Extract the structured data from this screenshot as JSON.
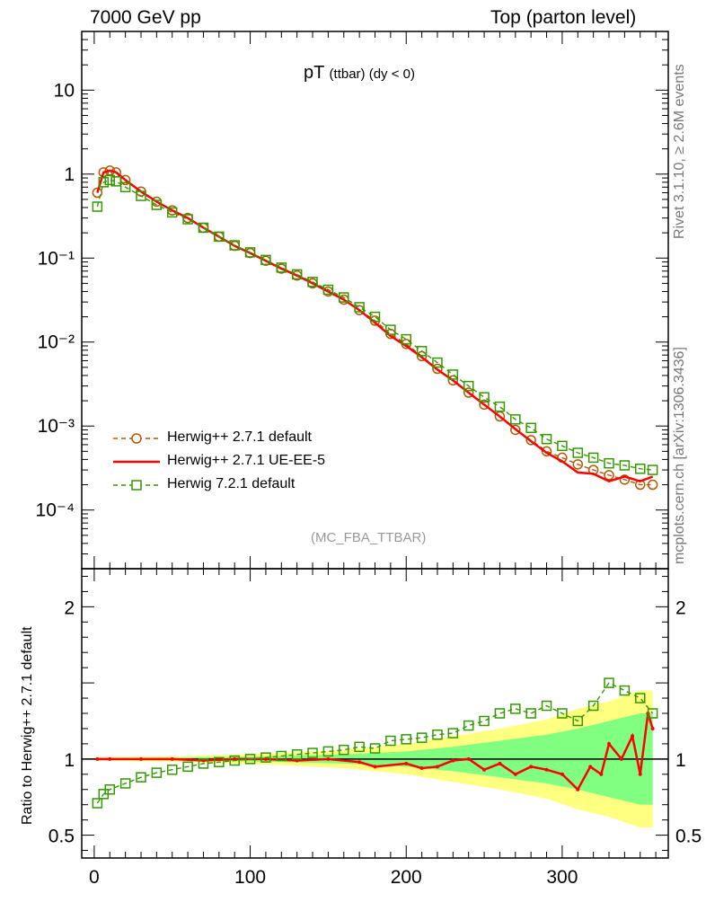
{
  "header": {
    "left": "7000 GeV pp",
    "right": "Top (parton level)"
  },
  "side_text": {
    "rivet": "Rivet 3.1.10, ≥ 2.6M events",
    "site": "mcplots.cern.ch [arXiv:1306.3436]"
  },
  "analysis_tag": "(MC_FBA_TTBAR)",
  "plot_title": {
    "main": "pT",
    "sub": "(ttbar) (dy < 0)"
  },
  "legend": [
    {
      "label": "Herwig++ 2.7.1 default",
      "color": "#b35900",
      "marker": "open-circle-dashed"
    },
    {
      "label": "Herwig++ 2.7.1 UE-EE-5",
      "color": "#ff0000",
      "marker": "solid-line"
    },
    {
      "label": "Herwig 7.2.1 default",
      "color": "#339900",
      "marker": "open-square-dashed"
    }
  ],
  "ratio_ylabel": "Ratio to Herwig++ 2.7.1 default",
  "colors": {
    "ref": "#b35900",
    "ue": "#ff0000",
    "h7": "#339900",
    "band_inner": "#80ff80",
    "band_outer": "#ffff80"
  },
  "chart_data": [
    {
      "type": "line",
      "panel": "main",
      "yscale": "log",
      "ylim": [
        2e-05,
        50
      ],
      "xlim": [
        -8,
        368
      ],
      "y_ticks": [
        {
          "value": 10,
          "label": "10"
        },
        {
          "value": 1,
          "label": "1"
        },
        {
          "value": 0.1,
          "label": "10⁻¹"
        },
        {
          "value": 0.01,
          "label": "10⁻²"
        },
        {
          "value": 0.001,
          "label": "10⁻³"
        },
        {
          "value": 0.0001,
          "label": "10⁻⁴"
        }
      ],
      "series": [
        {
          "name": "Herwig++ 2.7.1 default",
          "points": [
            [
              2,
              0.6
            ],
            [
              6,
              1.05
            ],
            [
              10,
              1.1
            ],
            [
              14,
              1.05
            ],
            [
              20,
              0.85
            ],
            [
              30,
              0.62
            ],
            [
              40,
              0.47
            ],
            [
              50,
              0.37
            ],
            [
              60,
              0.3
            ],
            [
              70,
              0.23
            ],
            [
              80,
              0.18
            ],
            [
              90,
              0.14
            ],
            [
              100,
              0.115
            ],
            [
              110,
              0.093
            ],
            [
              120,
              0.075
            ],
            [
              130,
              0.062
            ],
            [
              140,
              0.05
            ],
            [
              150,
              0.04
            ],
            [
              160,
              0.032
            ],
            [
              170,
              0.024
            ],
            [
              180,
              0.018
            ],
            [
              190,
              0.0125
            ],
            [
              200,
              0.0095
            ],
            [
              210,
              0.0068
            ],
            [
              220,
              0.0048
            ],
            [
              230,
              0.0035
            ],
            [
              240,
              0.0025
            ],
            [
              250,
              0.0018
            ],
            [
              260,
              0.0013
            ],
            [
              270,
              0.0009
            ],
            [
              280,
              0.00068
            ],
            [
              290,
              0.0005
            ],
            [
              300,
              0.00042
            ],
            [
              310,
              0.00035
            ],
            [
              320,
              0.0003
            ],
            [
              330,
              0.00026
            ],
            [
              340,
              0.00023
            ],
            [
              350,
              0.0002
            ],
            [
              358,
              0.0002
            ]
          ]
        },
        {
          "name": "Herwig++ 2.7.1 UE-EE-5",
          "points": [
            [
              2,
              0.6
            ],
            [
              6,
              1.05
            ],
            [
              10,
              1.1
            ],
            [
              14,
              1.05
            ],
            [
              20,
              0.85
            ],
            [
              30,
              0.62
            ],
            [
              40,
              0.47
            ],
            [
              50,
              0.37
            ],
            [
              60,
              0.3
            ],
            [
              70,
              0.23
            ],
            [
              80,
              0.18
            ],
            [
              90,
              0.14
            ],
            [
              100,
              0.115
            ],
            [
              110,
              0.093
            ],
            [
              120,
              0.075
            ],
            [
              130,
              0.062
            ],
            [
              140,
              0.05
            ],
            [
              150,
              0.04
            ],
            [
              160,
              0.032
            ],
            [
              170,
              0.024
            ],
            [
              180,
              0.017
            ],
            [
              190,
              0.0118
            ],
            [
              200,
              0.009
            ],
            [
              210,
              0.0066
            ],
            [
              220,
              0.0047
            ],
            [
              230,
              0.0035
            ],
            [
              240,
              0.0025
            ],
            [
              250,
              0.0018
            ],
            [
              260,
              0.0013
            ],
            [
              270,
              0.00092
            ],
            [
              280,
              0.00066
            ],
            [
              290,
              0.00048
            ],
            [
              300,
              0.00038
            ],
            [
              310,
              0.00028
            ],
            [
              320,
              0.00027
            ],
            [
              330,
              0.00022
            ],
            [
              340,
              0.00025
            ],
            [
              350,
              0.00022
            ],
            [
              358,
              0.00025
            ]
          ]
        },
        {
          "name": "Herwig 7.2.1 default",
          "points": [
            [
              2,
              0.41
            ],
            [
              6,
              0.8
            ],
            [
              10,
              0.85
            ],
            [
              14,
              0.82
            ],
            [
              20,
              0.7
            ],
            [
              30,
              0.55
            ],
            [
              40,
              0.43
            ],
            [
              50,
              0.35
            ],
            [
              60,
              0.29
            ],
            [
              70,
              0.23
            ],
            [
              80,
              0.18
            ],
            [
              90,
              0.142
            ],
            [
              100,
              0.117
            ],
            [
              110,
              0.095
            ],
            [
              120,
              0.077
            ],
            [
              130,
              0.064
            ],
            [
              140,
              0.052
            ],
            [
              150,
              0.042
            ],
            [
              160,
              0.034
            ],
            [
              170,
              0.026
            ],
            [
              180,
              0.02
            ],
            [
              190,
              0.014
            ],
            [
              200,
              0.0108
            ],
            [
              210,
              0.0078
            ],
            [
              220,
              0.0057
            ],
            [
              230,
              0.0041
            ],
            [
              240,
              0.003
            ],
            [
              250,
              0.0022
            ],
            [
              260,
              0.0017
            ],
            [
              270,
              0.0012
            ],
            [
              280,
              0.00095
            ],
            [
              290,
              0.0007
            ],
            [
              300,
              0.00058
            ],
            [
              310,
              0.00048
            ],
            [
              320,
              0.00042
            ],
            [
              330,
              0.00036
            ],
            [
              340,
              0.00034
            ],
            [
              350,
              0.00031
            ],
            [
              358,
              0.0003
            ]
          ]
        }
      ]
    },
    {
      "type": "line",
      "panel": "ratio",
      "ylabel": "Ratio to Herwig++ 2.7.1 default",
      "ylim": [
        0.35,
        2.25
      ],
      "xlim": [
        -8,
        368
      ],
      "y_ticks": [
        {
          "value": 2,
          "label": "2"
        },
        {
          "value": 1,
          "label": "1"
        },
        {
          "value": 0.5,
          "label": "0.5"
        }
      ],
      "x_ticks": [
        {
          "value": 0,
          "label": "0"
        },
        {
          "value": 100,
          "label": "100"
        },
        {
          "value": 200,
          "label": "200"
        },
        {
          "value": 300,
          "label": "300"
        }
      ],
      "bands": {
        "x": [
          0,
          60,
          120,
          160,
          200,
          230,
          260,
          290,
          310,
          330,
          350,
          358
        ],
        "inner": [
          0.005,
          0.01,
          0.02,
          0.03,
          0.05,
          0.08,
          0.12,
          0.16,
          0.2,
          0.25,
          0.3,
          0.3
        ],
        "outer": [
          0.01,
          0.02,
          0.04,
          0.06,
          0.1,
          0.15,
          0.2,
          0.26,
          0.33,
          0.38,
          0.45,
          0.45
        ]
      },
      "series": [
        {
          "name": "Herwig++ 2.7.1 UE-EE-5",
          "points": [
            [
              2,
              1.0
            ],
            [
              10,
              1.0
            ],
            [
              30,
              1.0
            ],
            [
              50,
              1.0
            ],
            [
              70,
              0.99
            ],
            [
              90,
              1.0
            ],
            [
              110,
              1.0
            ],
            [
              130,
              0.99
            ],
            [
              150,
              1.0
            ],
            [
              170,
              0.98
            ],
            [
              180,
              0.95
            ],
            [
              200,
              0.97
            ],
            [
              210,
              0.94
            ],
            [
              220,
              0.95
            ],
            [
              230,
              0.99
            ],
            [
              240,
              1.0
            ],
            [
              250,
              0.93
            ],
            [
              260,
              0.97
            ],
            [
              270,
              0.9
            ],
            [
              280,
              0.95
            ],
            [
              290,
              0.93
            ],
            [
              300,
              0.9
            ],
            [
              310,
              0.8
            ],
            [
              318,
              0.95
            ],
            [
              325,
              0.9
            ],
            [
              330,
              1.1
            ],
            [
              338,
              1.0
            ],
            [
              345,
              1.15
            ],
            [
              350,
              0.9
            ],
            [
              355,
              1.3
            ],
            [
              358,
              1.2
            ]
          ]
        },
        {
          "name": "Herwig 7.2.1 default",
          "points": [
            [
              2,
              0.71
            ],
            [
              6,
              0.77
            ],
            [
              10,
              0.8
            ],
            [
              20,
              0.84
            ],
            [
              30,
              0.88
            ],
            [
              40,
              0.91
            ],
            [
              50,
              0.93
            ],
            [
              60,
              0.95
            ],
            [
              70,
              0.97
            ],
            [
              80,
              0.98
            ],
            [
              90,
              0.99
            ],
            [
              100,
              1.0
            ],
            [
              110,
              1.01
            ],
            [
              120,
              1.02
            ],
            [
              130,
              1.03
            ],
            [
              140,
              1.04
            ],
            [
              150,
              1.05
            ],
            [
              160,
              1.06
            ],
            [
              170,
              1.08
            ],
            [
              180,
              1.07
            ],
            [
              190,
              1.12
            ],
            [
              200,
              1.13
            ],
            [
              210,
              1.14
            ],
            [
              220,
              1.16
            ],
            [
              230,
              1.17
            ],
            [
              240,
              1.22
            ],
            [
              250,
              1.25
            ],
            [
              260,
              1.3
            ],
            [
              270,
              1.33
            ],
            [
              280,
              1.3
            ],
            [
              290,
              1.35
            ],
            [
              300,
              1.3
            ],
            [
              310,
              1.25
            ],
            [
              320,
              1.35
            ],
            [
              330,
              1.5
            ],
            [
              340,
              1.45
            ],
            [
              350,
              1.4
            ],
            [
              358,
              1.3
            ]
          ]
        }
      ]
    }
  ]
}
